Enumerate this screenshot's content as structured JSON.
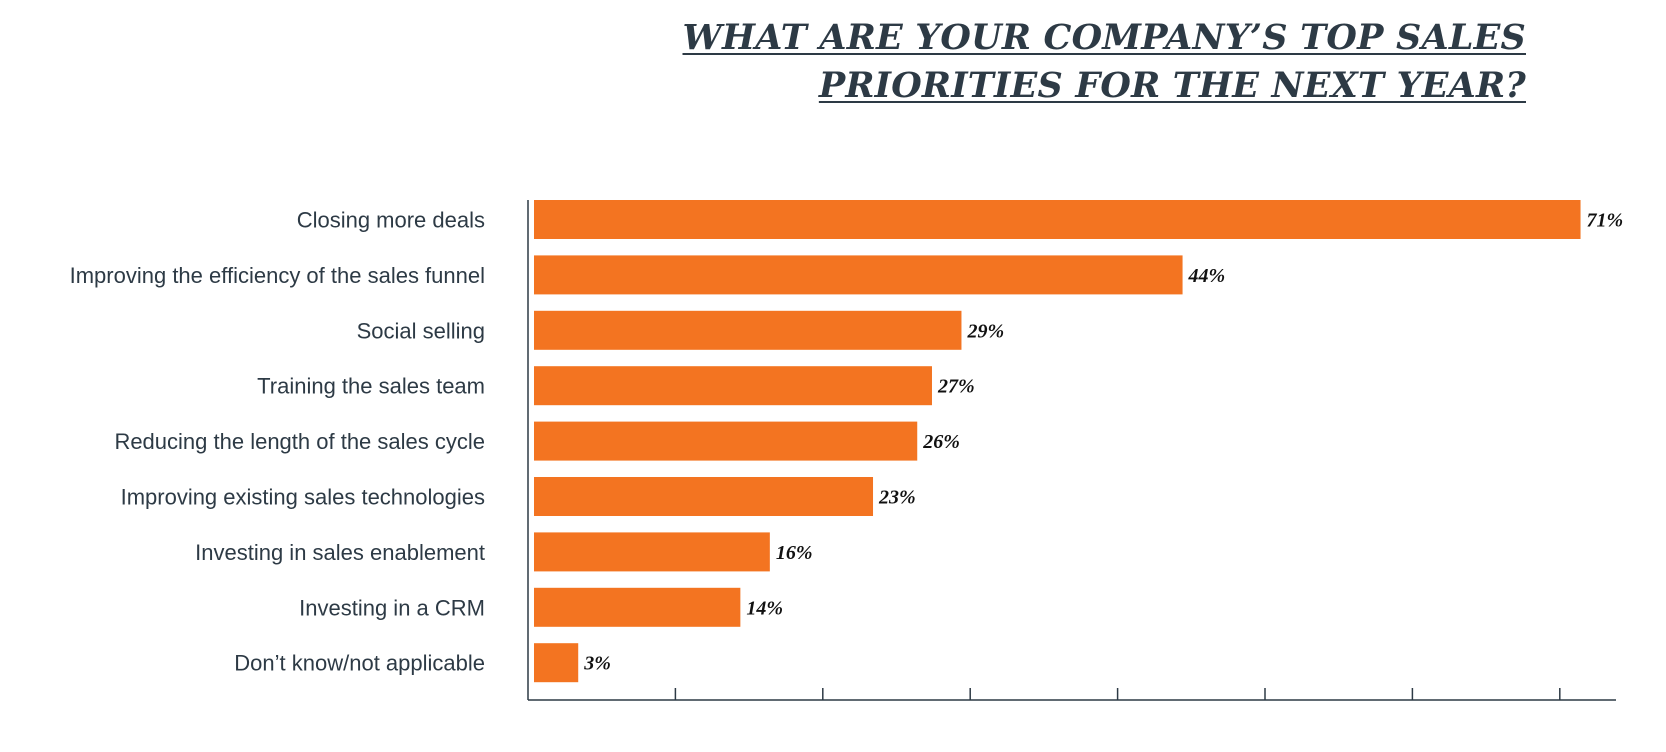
{
  "title_lines": [
    "WHAT ARE YOUR COMPANY’S TOP SALES",
    "PRIORITIES FOR THE NEXT YEAR?"
  ],
  "colors": {
    "bar": "#f37421",
    "axis": "#2d3a45",
    "title": "#2d3a45"
  },
  "chart_data": {
    "type": "bar",
    "orientation": "horizontal",
    "title": "WHAT ARE YOUR COMPANY’S TOP SALES PRIORITIES FOR THE NEXT YEAR?",
    "categories": [
      "Closing more deals",
      "Improving the efficiency of the sales funnel",
      "Social selling",
      "Training the sales team",
      "Reducing the length of the sales cycle",
      "Improving existing sales technologies",
      "Investing in sales enablement",
      "Investing in a CRM",
      "Don’t know/not applicable"
    ],
    "values": [
      71,
      44,
      29,
      27,
      26,
      23,
      16,
      14,
      3
    ],
    "value_labels": [
      "71%",
      "44%",
      "29%",
      "27%",
      "26%",
      "23%",
      "16%",
      "14%",
      "3%"
    ],
    "unit": "%",
    "xlim": [
      0,
      74
    ],
    "x_ticks": [
      0,
      10,
      20,
      30,
      40,
      50,
      60,
      70
    ],
    "grid": false,
    "legend": "none"
  }
}
